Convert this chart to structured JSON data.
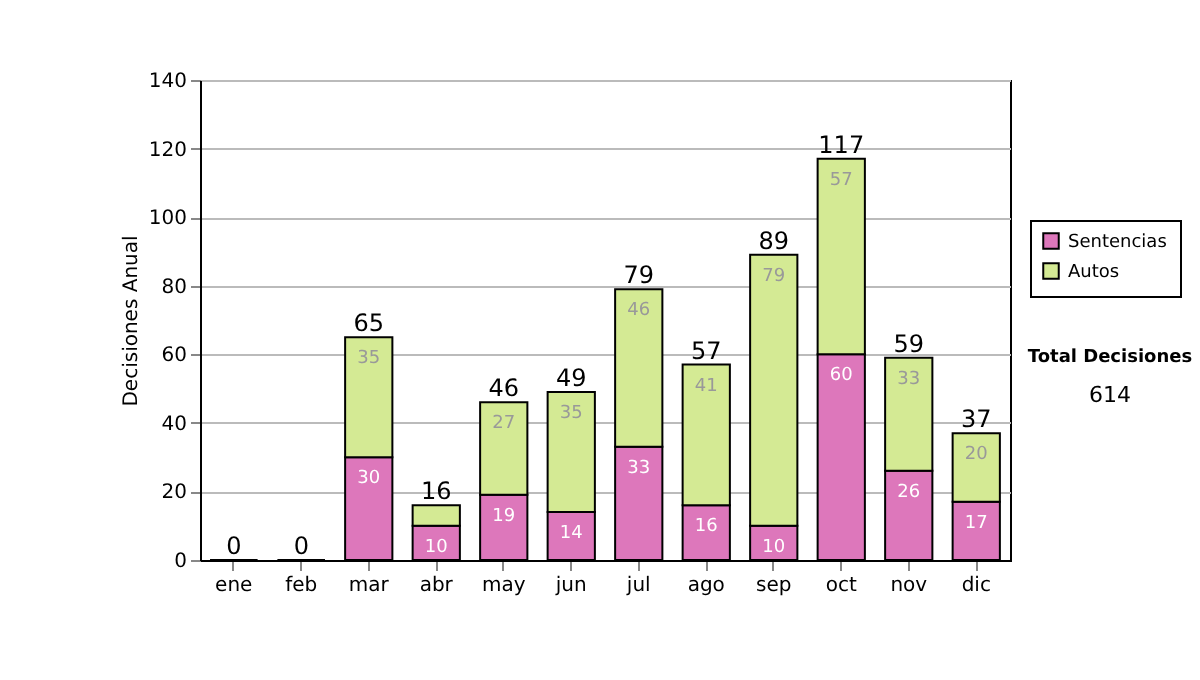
{
  "chart_data": {
    "type": "bar",
    "stacked": true,
    "ylabel": "Decisiones Anual",
    "categories": [
      "ene",
      "feb",
      "mar",
      "abr",
      "may",
      "jun",
      "jul",
      "ago",
      "sep",
      "oct",
      "nov",
      "dic"
    ],
    "series": [
      {
        "name": "Sentencias",
        "color": "#dd77bb",
        "values": [
          0,
          0,
          30,
          10,
          19,
          14,
          33,
          16,
          10,
          60,
          26,
          17
        ],
        "value_labels": [
          null,
          null,
          "30",
          "10",
          "19",
          "14",
          "33",
          "16",
          "10",
          "60",
          "26",
          "17"
        ]
      },
      {
        "name": "Autos",
        "color": "#d4ea94",
        "values": [
          0,
          0,
          35,
          6,
          27,
          35,
          46,
          41,
          79,
          57,
          33,
          20
        ],
        "value_labels": [
          null,
          null,
          "35",
          null,
          "27",
          "35",
          "46",
          "41",
          "79",
          "57",
          "33",
          "20"
        ]
      }
    ],
    "totals": [
      "0",
      "0",
      "65",
      "16",
      "46",
      "49",
      "79",
      "57",
      "89",
      "117",
      "59",
      "37"
    ],
    "ylim": [
      0,
      140
    ],
    "yticks": [
      0,
      20,
      40,
      60,
      80,
      100,
      120,
      140
    ],
    "grid": "y",
    "legend": "right",
    "annotations": [
      "Total Decisiones",
      "614"
    ]
  }
}
